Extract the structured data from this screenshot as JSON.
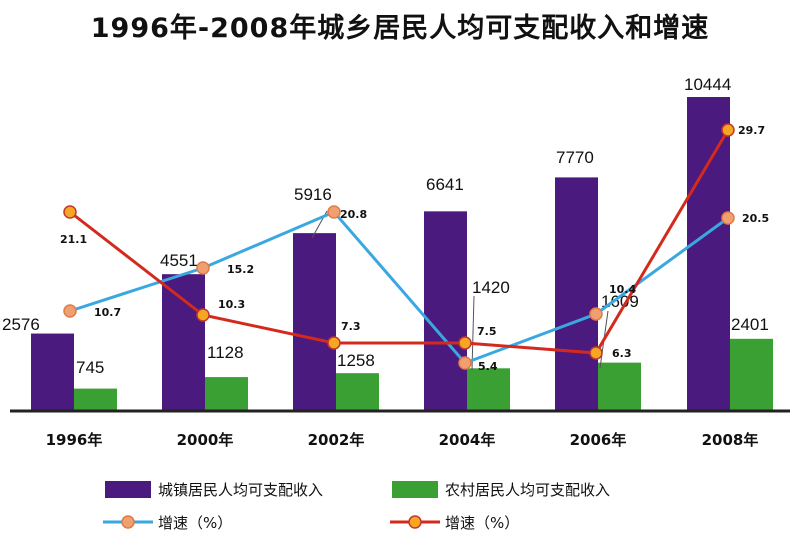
{
  "chart_data": {
    "type": "bar",
    "title": "1996年-2008年城乡居民人均可支配收入和增速",
    "categories": [
      "1996年",
      "2000年",
      "2002年",
      "2004年",
      "2006年",
      "2008年"
    ],
    "xlabel": "",
    "ylabel": "",
    "ylim": [
      0,
      11000
    ],
    "grid": false,
    "legend_placement": "bottom",
    "series": [
      {
        "name": "城镇居民人均可支配收入",
        "type": "bar",
        "color": "#4a1a7e",
        "values": [
          2576,
          4551,
          5916,
          6641,
          7770,
          10444
        ],
        "labels": [
          "2576",
          "4551",
          "5916",
          "6641",
          "7770",
          "10444"
        ]
      },
      {
        "name": "农村居民人均可支配收入",
        "type": "bar",
        "color": "#3aa033",
        "values": [
          745,
          1128,
          1258,
          1420,
          1609,
          2401
        ],
        "labels": [
          "745",
          "1128",
          "1258",
          "1420",
          "1609",
          "2401"
        ]
      },
      {
        "name": "增速（%）",
        "type": "line",
        "color": "#3aa8e0",
        "marker_color": "#f0a070",
        "values": [
          10.7,
          15.2,
          20.8,
          5.4,
          10.4,
          20.5
        ],
        "labels": [
          "10.7",
          "15.2",
          "20.8",
          "5.4",
          "10.4",
          "20.5"
        ]
      },
      {
        "name": "增速（%）",
        "type": "line",
        "color": "#d42a1e",
        "marker_color": "#f5a623",
        "values": [
          21.1,
          10.3,
          7.3,
          7.5,
          6.3,
          29.7
        ],
        "labels": [
          "21.1",
          "10.3",
          "7.3",
          "7.5",
          "6.3",
          "29.7"
        ]
      }
    ],
    "line_scale": [
      0,
      31
    ]
  }
}
